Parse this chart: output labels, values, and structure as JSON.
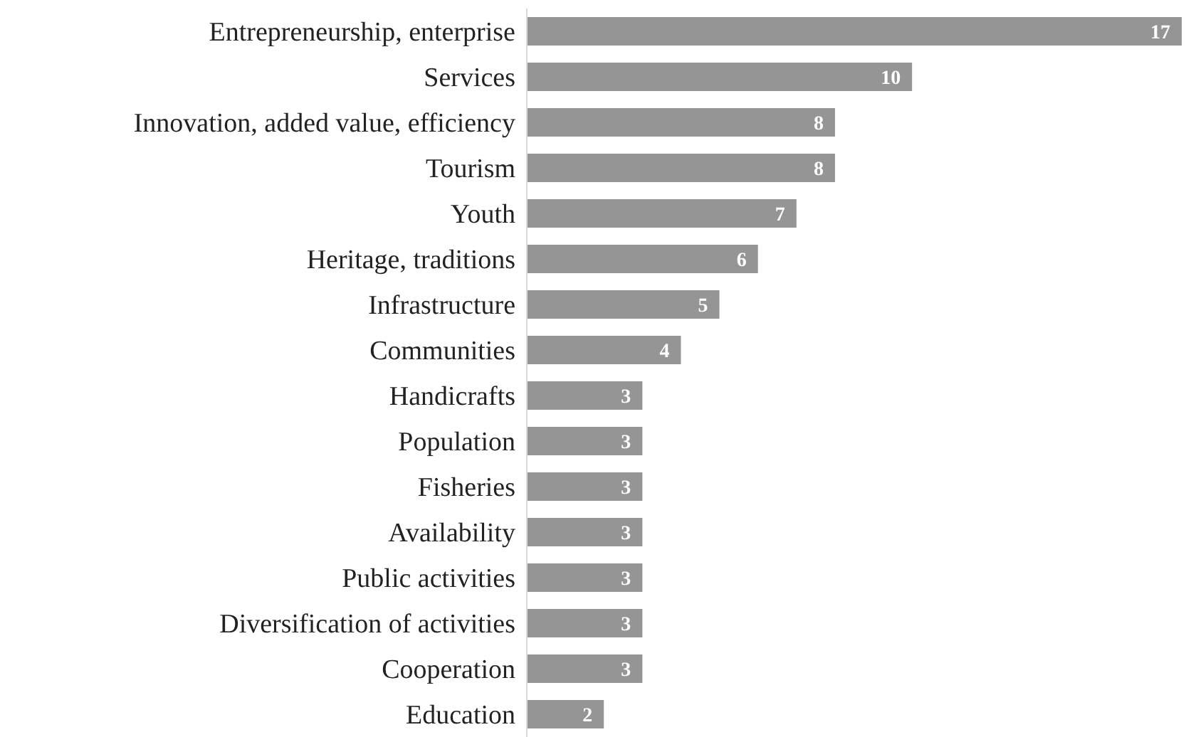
{
  "chart_data": {
    "type": "bar",
    "orientation": "horizontal",
    "categories": [
      "Entrepreneurship, enterprise",
      "Services",
      "Innovation, added value, efficiency",
      "Tourism",
      "Youth",
      "Heritage, traditions",
      "Infrastructure",
      "Communities",
      "Handicrafts",
      "Population",
      "Fisheries",
      "Availability",
      "Public activities",
      "Diversification of activities",
      "Cooperation",
      "Education"
    ],
    "values": [
      17,
      10,
      8,
      8,
      7,
      6,
      5,
      4,
      3,
      3,
      3,
      3,
      3,
      3,
      3,
      2
    ],
    "color": "#959595",
    "data_labels": true,
    "grid": false,
    "legend": false
  }
}
